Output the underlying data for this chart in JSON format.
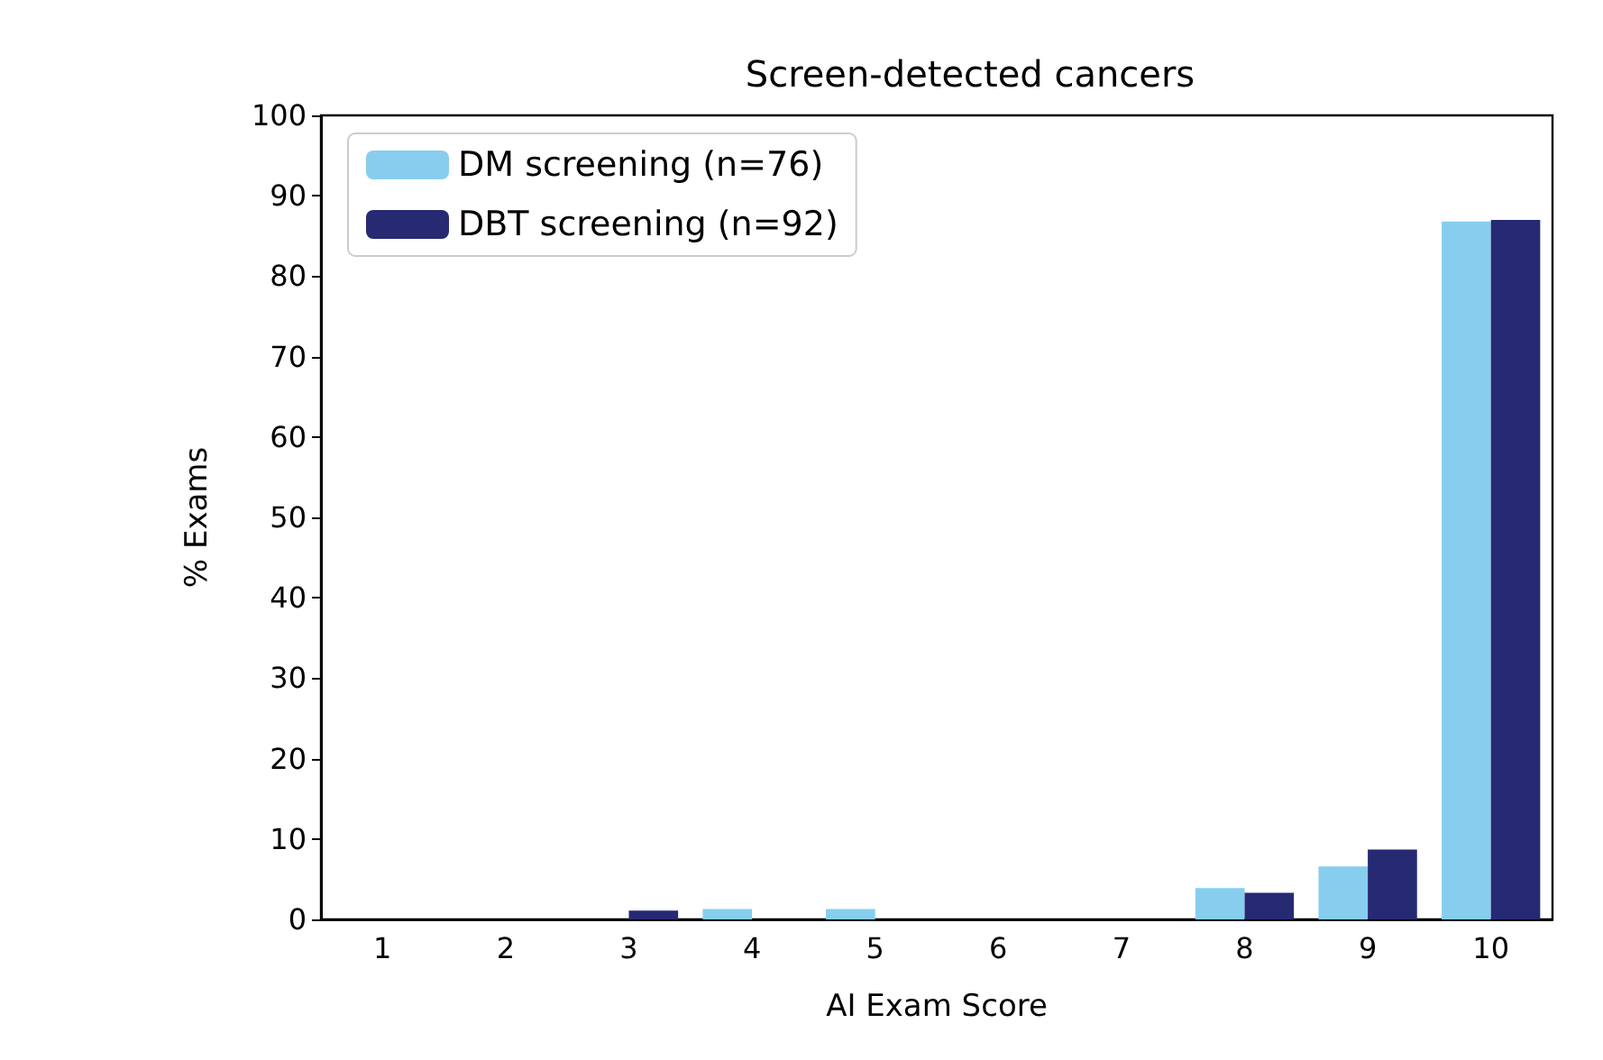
{
  "chart_data": {
    "type": "bar",
    "title": "Screen-detected cancers",
    "xlabel": "AI Exam Score",
    "ylabel": "% Exams",
    "categories": [
      "1",
      "2",
      "3",
      "4",
      "5",
      "6",
      "7",
      "8",
      "9",
      "10"
    ],
    "series": [
      {
        "name": "DM screening (n=76)",
        "color": "#87ceee",
        "values": [
          0,
          0,
          0,
          1.3,
          1.3,
          0,
          0,
          3.9,
          6.6,
          86.8
        ]
      },
      {
        "name": "DBT screening (n=92)",
        "color": "#262a72",
        "values": [
          0,
          0,
          1.1,
          0,
          0,
          0,
          0,
          3.3,
          8.7,
          87.0
        ]
      }
    ],
    "ylim": [
      0,
      100
    ],
    "yticks": [
      0,
      10,
      20,
      30,
      40,
      50,
      60,
      70,
      80,
      90,
      100
    ],
    "grid": false,
    "legend": "top left"
  }
}
